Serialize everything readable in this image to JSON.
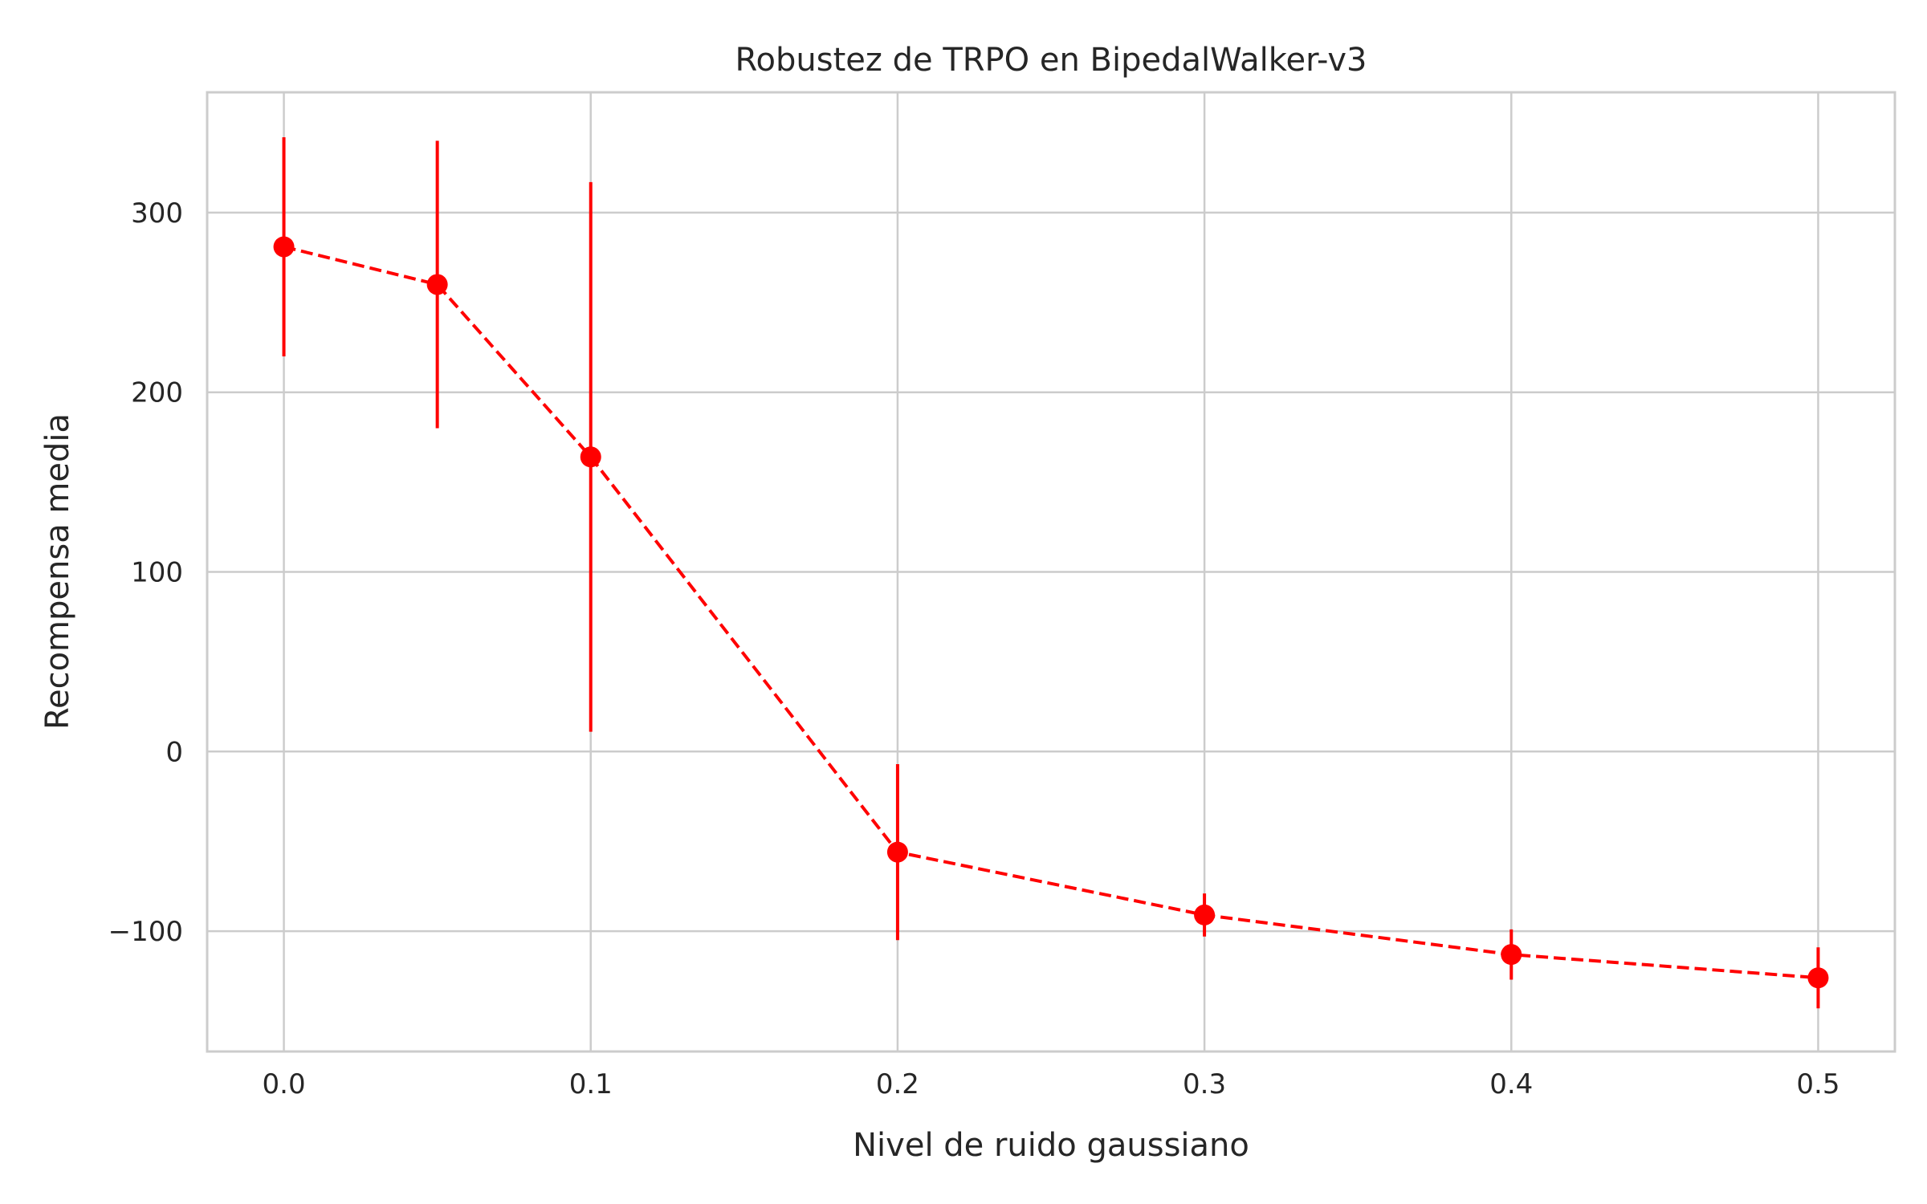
{
  "chart_data": {
    "type": "line",
    "title": "Robustez de TRPO en BipedalWalker-v3",
    "xlabel": "Nivel de ruido gaussiano",
    "ylabel": "Recompensa media",
    "xlim": [
      -0.025,
      0.525
    ],
    "ylim": [
      -167,
      367
    ],
    "x_ticks": [
      0.0,
      0.1,
      0.2,
      0.3,
      0.4,
      0.5
    ],
    "x_tick_labels": [
      "0.0",
      "0.1",
      "0.2",
      "0.3",
      "0.4",
      "0.5"
    ],
    "y_ticks": [
      -100,
      0,
      100,
      200,
      300
    ],
    "y_tick_labels": [
      "−100",
      "0",
      "100",
      "200",
      "300"
    ],
    "grid": true,
    "legend": false,
    "series": [
      {
        "color": "#ff0000",
        "line_style": "dashed",
        "marker": "circle",
        "x": [
          0.0,
          0.05,
          0.1,
          0.2,
          0.3,
          0.4,
          0.5
        ],
        "y": [
          281,
          260,
          164,
          -56,
          -91,
          -113,
          -126
        ],
        "error": [
          61,
          80,
          153,
          49,
          12,
          14,
          17
        ]
      }
    ]
  }
}
